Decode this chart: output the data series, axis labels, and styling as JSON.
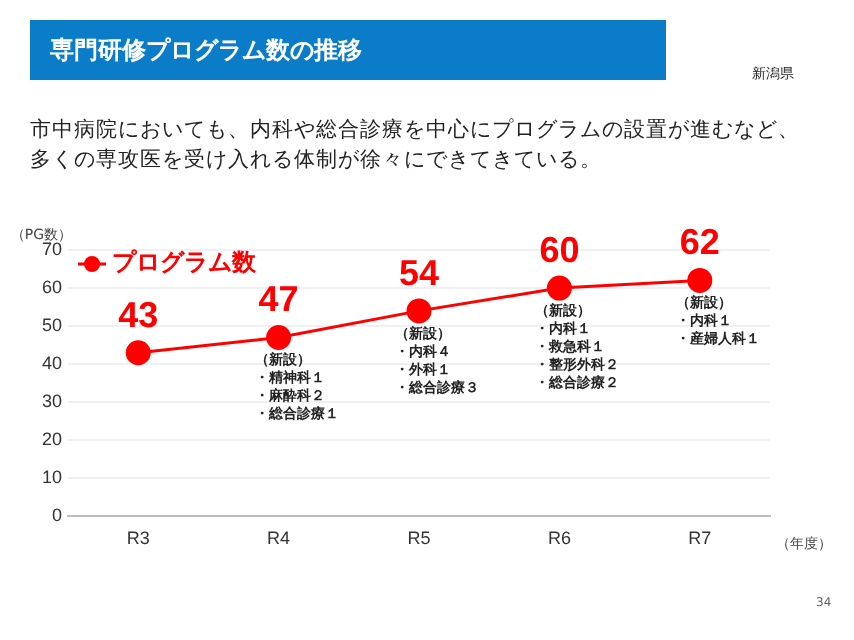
{
  "chart_data": {
    "type": "line",
    "title": "専門研修プログラム数の推移",
    "subtitle": "市中病院においても、内科や総合診療を中心にプログラムの設置が進むなど、多くの専攻医を受け入れる体制が徐々にできてきている。",
    "ylabel": "（PG数）",
    "xlabel": "（年度）",
    "categories": [
      "R3",
      "R4",
      "R5",
      "R6",
      "R7"
    ],
    "series": [
      {
        "name": "プログラム数",
        "color": "#ff0000",
        "values": [
          43,
          47,
          54,
          60,
          62
        ]
      }
    ],
    "ylim": [
      0,
      70
    ],
    "yticks": [
      0,
      10,
      20,
      30,
      40,
      50,
      60,
      70
    ],
    "grid": "y",
    "legend": "top left",
    "marker": "circle",
    "data_labels": true,
    "annotations": [
      "新潟県",
      "34",
      {
        "text": "（新設）・精神科１・麻酔科２・総合診療１",
        "x": "R4",
        "y": 47
      },
      {
        "text": "（新設）・内科４・外科１・総合診療３",
        "x": "R5",
        "y": 54
      },
      {
        "text": "（新設）・内科１・救急科１・整形外科２・総合診療２",
        "x": "R6",
        "y": 60
      },
      {
        "text": "（新設）・内科１・産婦人科１",
        "x": "R7",
        "y": 62
      }
    ]
  }
}
